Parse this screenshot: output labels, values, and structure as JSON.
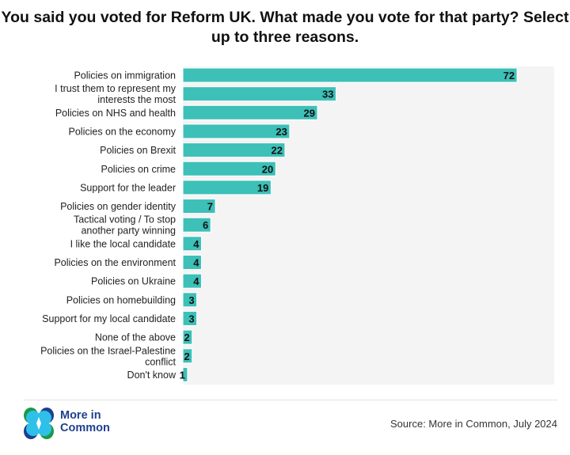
{
  "title": "You said you voted for Reform UK. What made you vote for that party? Select up to three reasons.",
  "source": "Source: More in Common, July 2024",
  "logo": {
    "line1": "More in",
    "line2": "Common"
  },
  "colors": {
    "bar": "#3cc0b8",
    "plot_bg": "#f4f4f4",
    "logo_text": "#1e3f8f"
  },
  "chart_data": {
    "type": "bar",
    "orientation": "horizontal",
    "categories": [
      "Policies on immigration",
      "I trust them to represent my interests the most",
      "Policies on NHS and health",
      "Policies on the economy",
      "Policies on Brexit",
      "Policies on crime",
      "Support for the leader",
      "Policies on gender identity",
      "Tactical voting / To stop another party winning",
      "I like the local candidate",
      "Policies on the environment",
      "Policies on Ukraine",
      "Policies on homebuilding",
      "Support for my local candidate",
      "None of the above",
      "Policies on the Israel-Palestine conflict",
      "Don't know"
    ],
    "category_lines": [
      [
        "Policies on immigration"
      ],
      [
        "I trust them to represent my",
        "interests the most"
      ],
      [
        "Policies on NHS and health"
      ],
      [
        "Policies on the economy"
      ],
      [
        "Policies on Brexit"
      ],
      [
        "Policies on crime"
      ],
      [
        "Support for the leader"
      ],
      [
        "Policies on gender identity"
      ],
      [
        "Tactical voting / To stop",
        "another party winning"
      ],
      [
        "I like the local candidate"
      ],
      [
        "Policies on the environment"
      ],
      [
        "Policies on Ukraine"
      ],
      [
        "Policies on homebuilding"
      ],
      [
        "Support for my local candidate"
      ],
      [
        "None of the above"
      ],
      [
        "Policies on the Israel-Palestine",
        "conflict"
      ],
      [
        "Don't know"
      ]
    ],
    "values": [
      72,
      33,
      29,
      23,
      22,
      20,
      19,
      7,
      6,
      4,
      4,
      4,
      3,
      3,
      2,
      2,
      1
    ],
    "xlim": [
      0,
      80
    ],
    "grid": false,
    "data_labels": true
  }
}
